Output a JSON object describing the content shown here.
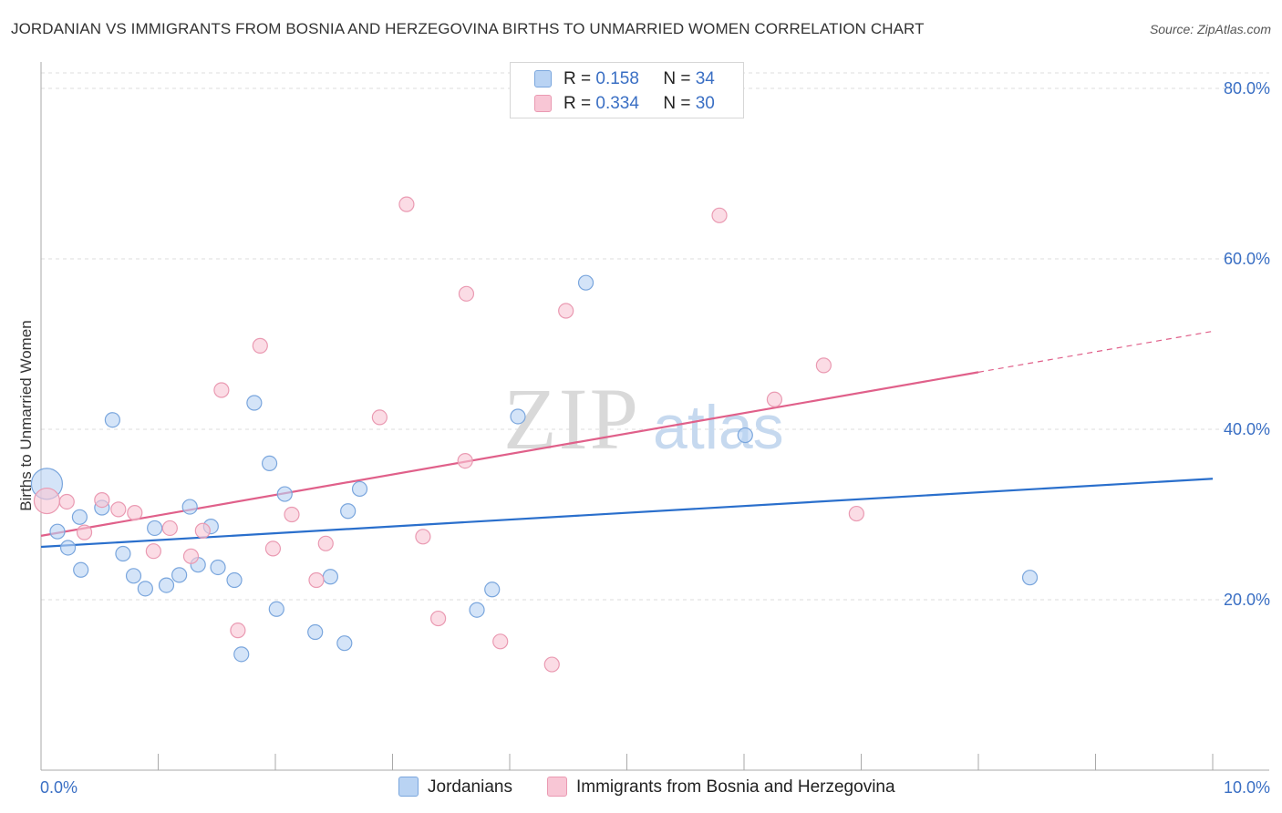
{
  "title": "JORDANIAN VS IMMIGRANTS FROM BOSNIA AND HERZEGOVINA BIRTHS TO UNMARRIED WOMEN CORRELATION CHART",
  "source": "Source: ZipAtlas.com",
  "watermark": {
    "zip": "ZIP",
    "atlas": "atlas"
  },
  "legend": {
    "rows": [
      {
        "r_label": "R =",
        "r_value": "0.158",
        "n_label": "N =",
        "n_value": "34"
      },
      {
        "r_label": "R =",
        "r_value": "0.334",
        "n_label": "N =",
        "n_value": "30"
      }
    ]
  },
  "colors": {
    "blue_fill": "#b9d3f3",
    "blue_stroke": "#7aa6dd",
    "blue_line": "#2a6fcc",
    "pink_fill": "#f8c6d5",
    "pink_stroke": "#ea9ab2",
    "pink_line": "#e0608a",
    "grid": "#dddddd",
    "axis_text": "#3a6fc4"
  },
  "chart_data": {
    "type": "scatter",
    "title": "JORDANIAN VS IMMIGRANTS FROM BOSNIA AND HERZEGOVINA BIRTHS TO UNMARRIED WOMEN CORRELATION CHART",
    "xlabel": "",
    "ylabel": "Births to Unmarried Women",
    "xlim": [
      0,
      10
    ],
    "ylim": [
      0,
      82
    ],
    "x_tick_labels": [
      "0.0%",
      "10.0%"
    ],
    "y_ticks": [
      20,
      40,
      60,
      80
    ],
    "y_tick_labels": [
      "20.0%",
      "40.0%",
      "60.0%",
      "80.0%"
    ],
    "series": [
      {
        "name": "Jordanians",
        "color": "#7aa6dd",
        "r": 0.158,
        "n": 34,
        "trend": {
          "x0": 0,
          "y0": 26.2,
          "x1": 10,
          "y1": 34.2,
          "solid_until": 10
        },
        "points": [
          {
            "x": 0.05,
            "y": 33.6,
            "big": true
          },
          {
            "x": 0.14,
            "y": 28.0
          },
          {
            "x": 0.23,
            "y": 26.1
          },
          {
            "x": 0.34,
            "y": 23.5
          },
          {
            "x": 0.33,
            "y": 29.7
          },
          {
            "x": 0.52,
            "y": 30.8
          },
          {
            "x": 0.61,
            "y": 41.1
          },
          {
            "x": 0.7,
            "y": 25.4
          },
          {
            "x": 0.79,
            "y": 22.8
          },
          {
            "x": 0.89,
            "y": 21.3
          },
          {
            "x": 0.97,
            "y": 28.4
          },
          {
            "x": 1.07,
            "y": 21.7
          },
          {
            "x": 1.18,
            "y": 22.9
          },
          {
            "x": 1.27,
            "y": 30.9
          },
          {
            "x": 1.34,
            "y": 24.1
          },
          {
            "x": 1.45,
            "y": 28.6
          },
          {
            "x": 1.51,
            "y": 23.8
          },
          {
            "x": 1.65,
            "y": 22.3
          },
          {
            "x": 1.71,
            "y": 13.6
          },
          {
            "x": 1.82,
            "y": 43.1
          },
          {
            "x": 1.95,
            "y": 36.0
          },
          {
            "x": 2.01,
            "y": 18.9
          },
          {
            "x": 2.08,
            "y": 32.4
          },
          {
            "x": 2.34,
            "y": 16.2
          },
          {
            "x": 2.47,
            "y": 22.7
          },
          {
            "x": 2.59,
            "y": 14.9
          },
          {
            "x": 2.62,
            "y": 30.4
          },
          {
            "x": 2.72,
            "y": 33.0
          },
          {
            "x": 3.72,
            "y": 18.8
          },
          {
            "x": 3.85,
            "y": 21.2
          },
          {
            "x": 4.07,
            "y": 41.5
          },
          {
            "x": 4.65,
            "y": 57.2
          },
          {
            "x": 6.01,
            "y": 39.3
          },
          {
            "x": 8.44,
            "y": 22.6
          }
        ]
      },
      {
        "name": "Immigrants from Bosnia and Herzegovina",
        "color": "#ea9ab2",
        "r": 0.334,
        "n": 30,
        "trend": {
          "x0": 0,
          "y0": 27.5,
          "x1": 10,
          "y1": 51.5,
          "solid_until": 8.0
        },
        "points": [
          {
            "x": 0.05,
            "y": 31.6,
            "big": true
          },
          {
            "x": 0.22,
            "y": 31.5
          },
          {
            "x": 0.37,
            "y": 27.9
          },
          {
            "x": 0.52,
            "y": 31.7
          },
          {
            "x": 0.66,
            "y": 30.6
          },
          {
            "x": 0.8,
            "y": 30.2
          },
          {
            "x": 0.96,
            "y": 25.7
          },
          {
            "x": 1.1,
            "y": 28.4
          },
          {
            "x": 1.28,
            "y": 25.1
          },
          {
            "x": 1.38,
            "y": 28.1
          },
          {
            "x": 1.54,
            "y": 44.6
          },
          {
            "x": 1.68,
            "y": 16.4
          },
          {
            "x": 1.87,
            "y": 49.8
          },
          {
            "x": 1.98,
            "y": 26.0
          },
          {
            "x": 2.14,
            "y": 30.0
          },
          {
            "x": 2.35,
            "y": 22.3
          },
          {
            "x": 2.43,
            "y": 26.6
          },
          {
            "x": 2.89,
            "y": 41.4
          },
          {
            "x": 3.12,
            "y": 66.4
          },
          {
            "x": 3.26,
            "y": 27.4
          },
          {
            "x": 3.39,
            "y": 17.8
          },
          {
            "x": 3.62,
            "y": 36.3
          },
          {
            "x": 3.63,
            "y": 55.9
          },
          {
            "x": 3.92,
            "y": 15.1
          },
          {
            "x": 4.36,
            "y": 12.4
          },
          {
            "x": 4.48,
            "y": 53.9
          },
          {
            "x": 5.79,
            "y": 65.1
          },
          {
            "x": 6.26,
            "y": 43.5
          },
          {
            "x": 6.68,
            "y": 47.5
          },
          {
            "x": 6.96,
            "y": 30.1
          }
        ]
      }
    ]
  }
}
